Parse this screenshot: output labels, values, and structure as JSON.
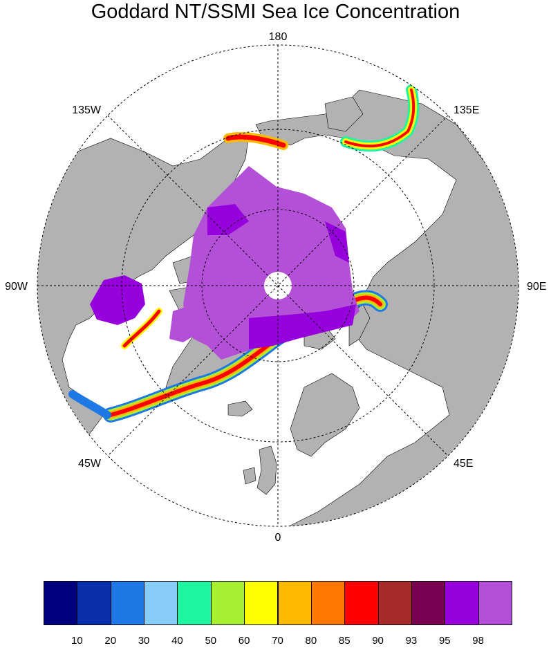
{
  "title": "Goddard NT/SSMI Sea Ice Concentration",
  "longitude_labels": {
    "lon_180": "180",
    "lon_135e": "135E",
    "lon_90e": "90E",
    "lon_45e": "45E",
    "lon_0": "0",
    "lon_45w": "45W",
    "lon_90w": "90W",
    "lon_135w": "135W"
  },
  "colorbar": {
    "labels": [
      "10",
      "20",
      "30",
      "40",
      "50",
      "60",
      "70",
      "80",
      "85",
      "90",
      "93",
      "95",
      "98"
    ],
    "colors": [
      "#00007f",
      "#0a2faa",
      "#1e78e6",
      "#87cdf8",
      "#1ef5a0",
      "#a8f032",
      "#ffff00",
      "#ffba00",
      "#ff7800",
      "#ff0000",
      "#a52a2a",
      "#780050",
      "#9600dc",
      "#b450d7"
    ]
  },
  "colors": {
    "land": "#b2b2b2",
    "ocean": "#ffffff",
    "pack_ice": "#b450d7",
    "pack_ice_dark": "#9600dc"
  }
}
